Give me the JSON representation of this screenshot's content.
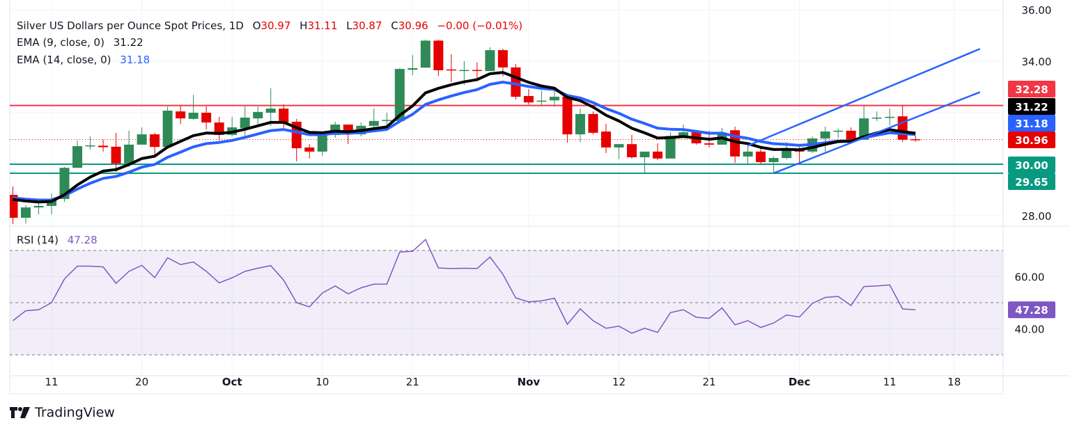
{
  "header": {
    "symbol_title": "Silver US Dollars per Ounce Spot Prices, 1D",
    "open_label": "O",
    "open": "30.97",
    "high_label": "H",
    "high": "31.11",
    "low_label": "L",
    "low": "30.87",
    "close_label": "C",
    "close": "30.96",
    "change": "−0.00 (−0.01%)"
  },
  "indicators": {
    "ema9_label": "EMA (9, close, 0)",
    "ema9_value": "31.22",
    "ema14_label": "EMA (14, close, 0)",
    "ema14_value": "31.18",
    "rsi_label": "RSI (14)",
    "rsi_value": "47.28"
  },
  "branding": {
    "logo_text": "TradingView"
  },
  "colors": {
    "up": "#2f8a58",
    "down": "#e60000",
    "ema9": "#000000",
    "ema14": "#2962ff",
    "resistance": "#f23645",
    "support": "#089981",
    "trendline": "#2962ff",
    "rsi": "#7e57c2"
  },
  "chart_data": [
    {
      "type": "candlestick",
      "title": "Silver US Dollars per Ounce Spot Prices, 1D",
      "ylim": [
        27.6,
        36.0
      ],
      "y_ticks": [
        "36.00",
        "34.00",
        "28.00"
      ],
      "x_ticks": [
        {
          "date": "Sep 11",
          "label": "11"
        },
        {
          "date": "Sep 20",
          "label": "20"
        },
        {
          "date": "Oct 1",
          "label": "Oct"
        },
        {
          "date": "Oct 10",
          "label": "10"
        },
        {
          "date": "Oct 21",
          "label": "21"
        },
        {
          "date": "Nov 1",
          "label": "Nov"
        },
        {
          "date": "Nov 12",
          "label": "12"
        },
        {
          "date": "Nov 21",
          "label": "21"
        },
        {
          "date": "Dec 2",
          "label": "Dec"
        },
        {
          "date": "Dec 11",
          "label": "11"
        },
        {
          "date": "Dec 18",
          "label": "18"
        }
      ],
      "grid": true,
      "ohlc": [
        [
          "Sep 6",
          28.81,
          29.14,
          27.68,
          27.92
        ],
        [
          "Sep 9",
          27.92,
          28.41,
          27.7,
          28.32
        ],
        [
          "Sep 10",
          28.32,
          28.54,
          28.05,
          28.38
        ],
        [
          "Sep 11",
          28.38,
          28.86,
          28.05,
          28.65
        ],
        [
          "Sep 12",
          28.65,
          29.89,
          28.54,
          29.86
        ],
        [
          "Sep 13",
          29.86,
          30.92,
          29.86,
          30.7
        ],
        [
          "Sep 16",
          30.7,
          31.08,
          30.57,
          30.73
        ],
        [
          "Sep 17",
          30.72,
          30.97,
          30.49,
          30.66
        ],
        [
          "Sep 18",
          30.68,
          31.22,
          29.7,
          30.03
        ],
        [
          "Sep 19",
          30.03,
          31.3,
          29.89,
          30.76
        ],
        [
          "Sep 20",
          30.76,
          31.43,
          30.76,
          31.16
        ],
        [
          "Sep 23",
          31.16,
          31.22,
          30.32,
          30.67
        ],
        [
          "Sep 24",
          30.67,
          32.24,
          30.68,
          32.08
        ],
        [
          "Sep 25",
          32.05,
          32.27,
          31.57,
          31.78
        ],
        [
          "Sep 26",
          31.76,
          32.7,
          31.73,
          32.0
        ],
        [
          "Sep 27",
          32.0,
          32.24,
          31.35,
          31.62
        ],
        [
          "Sep 30",
          31.62,
          31.84,
          30.92,
          31.14
        ],
        [
          "Oct 1",
          31.14,
          31.84,
          31.08,
          31.43
        ],
        [
          "Oct 2",
          31.4,
          32.24,
          31.0,
          31.81
        ],
        [
          "Oct 3",
          31.78,
          32.24,
          31.43,
          32.03
        ],
        [
          "Oct 4",
          32.0,
          32.95,
          31.49,
          32.16
        ],
        [
          "Oct 7",
          32.16,
          32.32,
          31.41,
          31.62
        ],
        [
          "Oct 8",
          31.65,
          31.76,
          30.11,
          30.62
        ],
        [
          "Oct 9",
          30.65,
          30.78,
          30.22,
          30.49
        ],
        [
          "Oct 10",
          30.49,
          31.16,
          30.32,
          31.16
        ],
        [
          "Oct 11",
          31.14,
          31.65,
          31.03,
          31.54
        ],
        [
          "Oct 14",
          31.54,
          31.54,
          30.78,
          31.16
        ],
        [
          "Oct 15",
          31.16,
          31.62,
          31.08,
          31.49
        ],
        [
          "Oct 16",
          31.49,
          32.16,
          31.35,
          31.68
        ],
        [
          "Oct 17",
          31.68,
          32.0,
          31.32,
          31.72
        ],
        [
          "Oct 18",
          31.68,
          33.73,
          31.62,
          33.7
        ],
        [
          "Oct 21",
          33.67,
          34.24,
          33.46,
          33.73
        ],
        [
          "Oct 22",
          33.75,
          34.84,
          33.76,
          34.8
        ],
        [
          "Oct 23",
          34.8,
          34.84,
          33.43,
          33.65
        ],
        [
          "Oct 24",
          33.68,
          34.27,
          33.19,
          33.64
        ],
        [
          "Oct 25",
          33.62,
          34.0,
          33.08,
          33.66
        ],
        [
          "Oct 28",
          33.66,
          33.95,
          33.24,
          33.62
        ],
        [
          "Oct 29",
          33.62,
          34.54,
          33.62,
          34.43
        ],
        [
          "Oct 30",
          34.43,
          34.49,
          33.41,
          33.76
        ],
        [
          "Oct 31",
          33.76,
          33.89,
          32.51,
          32.62
        ],
        [
          "Nov 1",
          32.65,
          32.92,
          32.32,
          32.4
        ],
        [
          "Nov 4",
          32.43,
          32.86,
          32.27,
          32.47
        ],
        [
          "Nov 5",
          32.48,
          32.89,
          32.24,
          32.62
        ],
        [
          "Nov 6",
          32.62,
          32.7,
          30.84,
          31.16
        ],
        [
          "Nov 7",
          31.16,
          32.16,
          30.86,
          31.95
        ],
        [
          "Nov 8",
          31.95,
          32.05,
          31.16,
          31.22
        ],
        [
          "Nov 11",
          31.27,
          31.57,
          30.43,
          30.65
        ],
        [
          "Nov 12",
          30.65,
          30.78,
          30.19,
          30.78
        ],
        [
          "Nov 13",
          30.78,
          31.14,
          30.22,
          30.27
        ],
        [
          "Nov 14",
          30.27,
          30.49,
          29.65,
          30.49
        ],
        [
          "Nov 15",
          30.49,
          30.81,
          30.16,
          30.22
        ],
        [
          "Nov 18",
          30.22,
          31.24,
          30.22,
          31.1
        ],
        [
          "Nov 19",
          31.08,
          31.54,
          31.03,
          31.24
        ],
        [
          "Nov 20",
          31.24,
          31.32,
          30.76,
          30.81
        ],
        [
          "Nov 21",
          30.81,
          31.3,
          30.65,
          30.76
        ],
        [
          "Nov 22",
          30.76,
          31.41,
          30.76,
          31.22
        ],
        [
          "Nov 25",
          31.32,
          31.46,
          30.05,
          30.3
        ],
        [
          "Nov 26",
          30.3,
          30.76,
          30.0,
          30.49
        ],
        [
          "Nov 27",
          30.49,
          30.7,
          30.0,
          30.08
        ],
        [
          "Nov 28",
          30.08,
          30.3,
          29.68,
          30.24
        ],
        [
          "Nov 29",
          30.24,
          30.86,
          30.19,
          30.6
        ],
        [
          "Dec 2",
          30.59,
          30.68,
          30.05,
          30.49
        ],
        [
          "Dec 3",
          30.49,
          31.08,
          30.43,
          31.0
        ],
        [
          "Dec 4",
          31.0,
          31.46,
          30.49,
          31.27
        ],
        [
          "Dec 5",
          31.27,
          31.38,
          31.03,
          31.3
        ],
        [
          "Dec 6",
          31.3,
          31.43,
          30.81,
          30.95
        ],
        [
          "Dec 9",
          30.95,
          32.27,
          30.95,
          31.78
        ],
        [
          "Dec 10",
          31.78,
          32.05,
          31.68,
          31.81
        ],
        [
          "Dec 11",
          31.81,
          32.16,
          31.51,
          31.84
        ],
        [
          "Dec 12",
          31.86,
          32.3,
          30.86,
          30.95
        ],
        [
          "Dec 13",
          30.97,
          31.11,
          30.87,
          30.96
        ]
      ],
      "horizontal_levels": [
        {
          "value": 32.28,
          "label": "32.28",
          "kind": "resistance"
        },
        {
          "value": 30.0,
          "label": "30.00",
          "kind": "support"
        },
        {
          "value": 29.65,
          "label": "29.65",
          "kind": "support"
        }
      ],
      "last_price": {
        "value": 30.96,
        "label": "30.96"
      },
      "ema_labels": {
        "ema9": "31.22",
        "ema14": "31.18"
      },
      "trendlines": [
        {
          "from": [
            "Nov 26",
            30.72
          ],
          "to": [
            "Dec 20",
            34.48
          ]
        },
        {
          "from": [
            "Nov 28",
            29.65
          ],
          "to": [
            "Dec 20",
            32.8
          ]
        }
      ]
    },
    {
      "type": "line",
      "title": "RSI (14)",
      "ylim": [
        25,
        77
      ],
      "y_ticks": [
        "60.00",
        "40.00"
      ],
      "bands": [
        70,
        50,
        30
      ],
      "last_label": "47.28",
      "values": [
        43.1,
        46.9,
        47.3,
        50.0,
        59.1,
        64.0,
        64.0,
        63.7,
        57.4,
        62.0,
        64.3,
        59.6,
        67.2,
        64.6,
        65.6,
        62.0,
        57.6,
        59.5,
        62.0,
        63.2,
        64.2,
        58.6,
        50.0,
        48.4,
        53.7,
        56.4,
        53.4,
        55.7,
        57.1,
        57.1,
        69.4,
        69.7,
        74.2,
        63.3,
        63.1,
        63.2,
        63.1,
        67.5,
        60.9,
        51.8,
        50.3,
        50.7,
        51.7,
        41.7,
        47.6,
        43.1,
        40.2,
        41.0,
        38.3,
        40.2,
        38.6,
        46.2,
        47.3,
        44.4,
        44.0,
        48.0,
        41.5,
        43.1,
        40.5,
        42.2,
        45.3,
        44.5,
        49.7,
        52.0,
        52.4,
        48.9,
        56.2,
        56.4,
        56.8,
        47.6,
        47.28
      ]
    }
  ]
}
